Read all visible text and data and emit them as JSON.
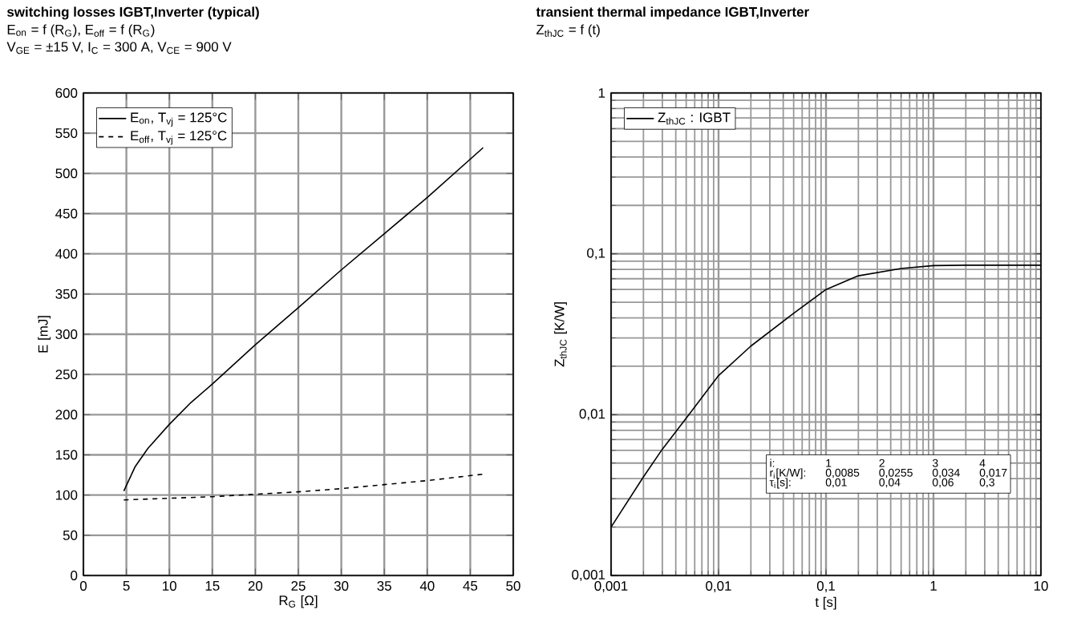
{
  "chart_data": [
    {
      "type": "line",
      "title": "switching losses  IGBT,Inverter (typical)",
      "subtitle": "E$_{on}$ = f (R$_{G}$), E$_{off}$ = f (R$_{G}$)",
      "annotations": [
        "V$_{GE}$ = ±15 V, I$_{C}$ = 300 A, V$_{CE}$ = 900 V"
      ],
      "xlabel": "R$_{G}$ [Ω]",
      "ylabel": "E [mJ]",
      "xlim": [
        0,
        50
      ],
      "ylim": [
        0,
        600
      ],
      "xticks": [
        0,
        5,
        10,
        15,
        20,
        25,
        30,
        35,
        40,
        45,
        50
      ],
      "yticks": [
        0,
        50,
        100,
        150,
        200,
        250,
        300,
        350,
        400,
        450,
        500,
        550,
        600
      ],
      "grid": true,
      "legend": "top left",
      "series": [
        {
          "name": "E$_{on}$, T$_{vj}$ = 125°C",
          "color": "#000000",
          "line_style": "solid",
          "x": [
            4.7,
            6,
            7.5,
            10,
            12.5,
            15,
            20,
            25,
            30,
            35,
            40,
            46.5
          ],
          "values": [
            105,
            135,
            158,
            188,
            215,
            238,
            287,
            333,
            380,
            425,
            470,
            532
          ]
        },
        {
          "name": "E$_{off}$, T$_{vj}$ = 125°C",
          "color": "#000000",
          "line_style": "dashed",
          "x": [
            4.7,
            10,
            15,
            20,
            25,
            30,
            35,
            40,
            46.5
          ],
          "values": [
            94,
            96,
            98,
            101,
            104,
            108,
            113,
            118,
            126
          ]
        }
      ]
    },
    {
      "type": "line",
      "title": "transient thermal impedance  IGBT,Inverter",
      "subtitle": "Z$_{thJC}$ = f (t)",
      "annotations": [
        "i:",
        "1",
        "2",
        "3",
        "4",
        "r$_{i}$[K/W]:",
        "0,0085",
        "0,0255",
        "0,034",
        "0,017",
        "τ$_{i}$[s]:",
        "0,01",
        "0,04",
        "0,06",
        "0,3"
      ],
      "xlabel": "t [s]",
      "ylabel": "Z$_{thJC}$ [K/W]",
      "log": "xy",
      "xlim": [
        0.001,
        10
      ],
      "ylim": [
        0.001,
        1
      ],
      "xticks": [
        {
          "value": 0.001,
          "label": "0,001"
        },
        {
          "value": 0.01,
          "label": "0,01"
        },
        {
          "value": 0.1,
          "label": "0,1"
        },
        1,
        10
      ],
      "yticks": [
        {
          "value": 0.001,
          "label": "0,001"
        },
        {
          "value": 0.01,
          "label": "0,01"
        },
        {
          "value": 0.1,
          "label": "0,1"
        },
        1
      ],
      "grid": true,
      "legend": "top left",
      "series": [
        {
          "name": "Z$_{thJC}$ : IGBT",
          "color": "#000000",
          "line_style": "solid",
          "x": [
            0.001,
            0.002,
            0.003,
            0.005,
            0.01,
            0.02,
            0.05,
            0.1,
            0.2,
            0.5,
            1,
            2,
            5,
            10
          ],
          "values": [
            0.002,
            0.0041,
            0.0061,
            0.0095,
            0.0175,
            0.0267,
            0.0427,
            0.06,
            0.073,
            0.081,
            0.0845,
            0.085,
            0.085,
            0.085
          ]
        }
      ]
    }
  ]
}
